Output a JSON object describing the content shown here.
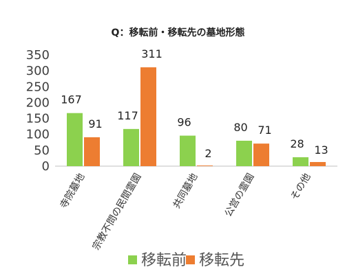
{
  "chart_data": {
    "type": "bar",
    "title": "Q：移転前・移転先の墓地形態",
    "categories": [
      "寺院墓地",
      "宗教不問の民間霊園",
      "共同墓地",
      "公営の霊園",
      "その他"
    ],
    "series": [
      {
        "name": "移転前",
        "values": [
          167,
          117,
          96,
          80,
          28
        ],
        "color": "#8cd14e"
      },
      {
        "name": "移転先",
        "values": [
          91,
          311,
          2,
          71,
          13
        ],
        "color": "#ed7d31"
      }
    ],
    "yticks": [
      0,
      50,
      100,
      150,
      200,
      250,
      300,
      350
    ],
    "ylim": [
      0,
      350
    ],
    "grid": false,
    "legend_position": "bottom"
  }
}
